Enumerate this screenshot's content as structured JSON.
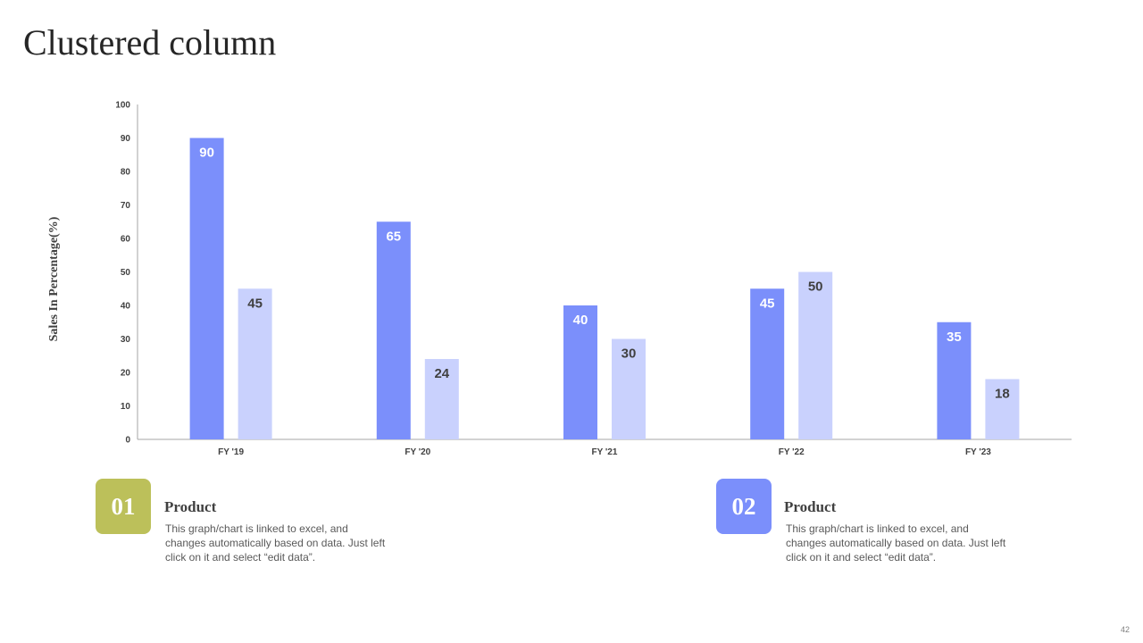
{
  "page": {
    "title": "Clustered column",
    "page_number": "42"
  },
  "chart_data": {
    "type": "bar",
    "categories": [
      "FY '19",
      "FY '20",
      "FY '21",
      "FY '22",
      "FY '23"
    ],
    "series": [
      {
        "values": [
          90,
          65,
          40,
          45,
          35
        ],
        "color": "#7b8ffb"
      },
      {
        "values": [
          45,
          24,
          30,
          50,
          18
        ],
        "color": "#c9d1fd"
      }
    ],
    "ylabel": "Sales In Percentage(%)",
    "xlabel": "",
    "ylim": [
      0,
      100
    ],
    "yticks": [
      0,
      10,
      20,
      30,
      40,
      50,
      60,
      70,
      80,
      90,
      100
    ],
    "grid": false,
    "legend": "none",
    "data_labels": true
  },
  "notes": [
    {
      "number": "01",
      "heading": "Product",
      "text": "This graph/chart is linked to excel, and changes automatically based on data. Just left click on it and select “edit data”.",
      "badge_color": "#bcc05a"
    },
    {
      "number": "02",
      "heading": "Product",
      "text": "This graph/chart is linked to excel, and changes automatically based on data. Just left click on it and select “edit data”.",
      "badge_color": "#7b8ffb"
    }
  ]
}
